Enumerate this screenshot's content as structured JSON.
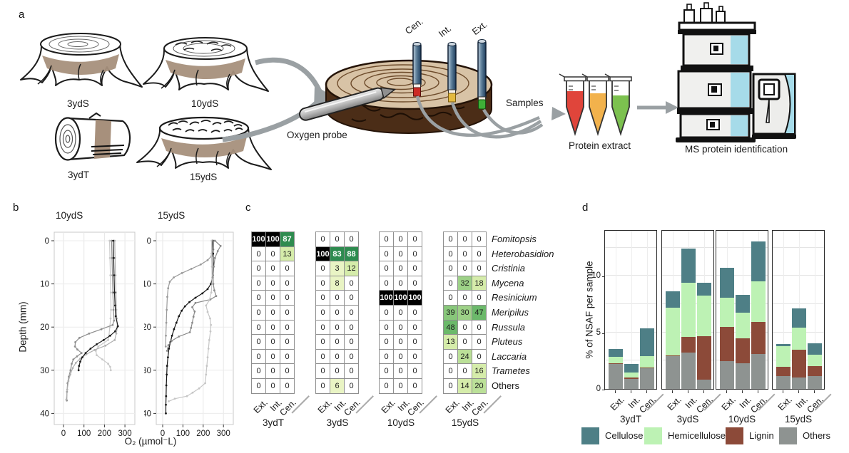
{
  "panel_labels": {
    "a": "a",
    "b": "b",
    "c": "c",
    "d": "d"
  },
  "panel_a": {
    "stump_labels": [
      "3ydS",
      "10ydS",
      "3ydT",
      "15ydS"
    ],
    "probe_labels": [
      "Cen.",
      "Int.",
      "Ext."
    ],
    "oxygen_probe_label": "Oxygen probe",
    "samples_label": "Samples",
    "protein_extract_label": "Protein extract",
    "ms_label": "MS protein identification",
    "colors": {
      "band": "#a7907c",
      "log_top": "#d8c3a6",
      "log_side": "#4b2d17",
      "probe_red": "#cc2b25",
      "probe_yellow": "#e3b93f",
      "probe_green": "#3fae37",
      "tube_red": "#e0453b",
      "tube_orange": "#f2b24c",
      "tube_green": "#7cc14f",
      "ms_blue": "#a6dbe9",
      "arrow_gray": "#9aa0a3"
    }
  },
  "chart_data": [
    {
      "id": "o2-profile-10ydS",
      "type": "line",
      "title": "10ydS",
      "xlabel": "O₂ (µmol⁻L)",
      "ylabel": "Depth (mm)",
      "xlim": [
        0,
        330
      ],
      "ylim": [
        0,
        42
      ],
      "y_inverted": true,
      "grid": true,
      "xticks": [
        0,
        100,
        200,
        300
      ],
      "yticks": [
        0,
        10,
        20,
        30,
        40
      ],
      "series": [
        {
          "name": "profile-light",
          "color": "#c9c9c9",
          "points": [
            [
              225,
              0
            ],
            [
              227,
              4
            ],
            [
              229,
              8
            ],
            [
              231,
              12
            ],
            [
              232,
              16
            ],
            [
              230,
              18
            ],
            [
              226,
              20
            ],
            [
              222,
              22
            ],
            [
              218,
              23
            ],
            [
              170,
              24.5
            ],
            [
              158,
              25.5
            ],
            [
              162,
              26.5
            ],
            [
              190,
              27.5
            ],
            [
              218,
              28.5
            ],
            [
              228,
              29.2
            ],
            [
              231,
              30
            ]
          ]
        },
        {
          "name": "profile-mid-deep",
          "color": "#8f8f8f",
          "points": [
            [
              235,
              0
            ],
            [
              237,
              4
            ],
            [
              239,
              8
            ],
            [
              241,
              12
            ],
            [
              244,
              16
            ],
            [
              247,
              18.5
            ],
            [
              240,
              19.5
            ],
            [
              185,
              20.5
            ],
            [
              125,
              21.5
            ],
            [
              78,
              22.5
            ],
            [
              58,
              23.5
            ],
            [
              56,
              24.5
            ],
            [
              68,
              25.2
            ],
            [
              88,
              26
            ],
            [
              66,
              26.8
            ],
            [
              48,
              27.5
            ],
            [
              40,
              28.5
            ],
            [
              34,
              30
            ],
            [
              26,
              31.5
            ],
            [
              20,
              33
            ],
            [
              17,
              35
            ],
            [
              16,
              37
            ]
          ]
        },
        {
          "name": "profile-mid",
          "color": "#b0b0b0",
          "points": [
            [
              250,
              0
            ],
            [
              252,
              4
            ],
            [
              254,
              8
            ],
            [
              256,
              12
            ],
            [
              258,
              16
            ],
            [
              260,
              18
            ],
            [
              263,
              20
            ],
            [
              258,
              21.5
            ],
            [
              250,
              23
            ],
            [
              205,
              24.3
            ],
            [
              152,
              25.3
            ],
            [
              112,
              26.3
            ],
            [
              82,
              27.3
            ],
            [
              60,
              28.3
            ],
            [
              45,
              29.5
            ],
            [
              33,
              31
            ],
            [
              24,
              32.5
            ],
            [
              18,
              34.5
            ],
            [
              14,
              36.8
            ]
          ]
        },
        {
          "name": "profile-dark",
          "color": "#1c1c1c",
          "points": [
            [
              243,
              0
            ],
            [
              245,
              4
            ],
            [
              247,
              8
            ],
            [
              249,
              12
            ],
            [
              252,
              15
            ],
            [
              255,
              17.5
            ],
            [
              266,
              19.8
            ],
            [
              252,
              21
            ],
            [
              228,
              22
            ],
            [
              196,
              23
            ],
            [
              162,
              24
            ],
            [
              132,
              25
            ],
            [
              108,
              26
            ],
            [
              92,
              27
            ],
            [
              82,
              28
            ],
            [
              76,
              29
            ],
            [
              74,
              30
            ]
          ]
        }
      ]
    },
    {
      "id": "o2-profile-15ydS",
      "type": "line",
      "title": "15ydS",
      "xlabel": "O₂ (µmol⁻L)",
      "ylabel": "Depth (mm)",
      "xlim": [
        0,
        330
      ],
      "ylim": [
        0,
        42
      ],
      "y_inverted": true,
      "grid": true,
      "xticks": [
        0,
        100,
        200,
        300
      ],
      "yticks": [
        0,
        10,
        20,
        30,
        40
      ],
      "series": [
        {
          "name": "profile-early-drop",
          "color": "#9a9a9a",
          "points": [
            [
              252,
              0
            ],
            [
              250,
              2
            ],
            [
              242,
              3.5
            ],
            [
              222,
              4.5
            ],
            [
              188,
              5.5
            ],
            [
              142,
              6.5
            ],
            [
              95,
              7.5
            ],
            [
              55,
              8.5
            ],
            [
              35,
              9.5
            ],
            [
              27,
              11
            ],
            [
              23,
              13
            ],
            [
              20,
              16
            ],
            [
              18,
              19
            ],
            [
              16,
              22
            ],
            [
              15,
              24.5
            ]
          ]
        },
        {
          "name": "profile-dark",
          "color": "#141414",
          "points": [
            [
              246,
              0
            ],
            [
              249,
              3
            ],
            [
              250,
              6
            ],
            [
              246,
              8.5
            ],
            [
              238,
              10
            ],
            [
              222,
              11.2
            ],
            [
              196,
              12.2
            ],
            [
              162,
              13.2
            ],
            [
              132,
              14.2
            ],
            [
              110,
              15.2
            ],
            [
              94,
              16.2
            ],
            [
              80,
              17.5
            ],
            [
              68,
              19
            ],
            [
              56,
              20.5
            ],
            [
              46,
              22
            ],
            [
              38,
              23.5
            ],
            [
              31,
              25
            ],
            [
              26,
              27
            ],
            [
              22,
              29
            ],
            [
              20,
              31
            ],
            [
              18,
              33.5
            ],
            [
              17,
              36
            ],
            [
              16,
              38
            ],
            [
              16,
              40
            ]
          ]
        },
        {
          "name": "profile-zigzag",
          "color": "#8a8a8a",
          "points": [
            [
              258,
              0
            ],
            [
              286,
              1.2
            ],
            [
              272,
              2.4
            ],
            [
              258,
              4
            ],
            [
              252,
              6
            ],
            [
              249,
              8
            ],
            [
              250,
              10
            ],
            [
              255,
              11.5
            ],
            [
              264,
              12.8
            ],
            [
              236,
              13.6
            ],
            [
              162,
              14.4
            ],
            [
              146,
              15.4
            ],
            [
              158,
              16.4
            ],
            [
              152,
              17.6
            ],
            [
              146,
              19
            ],
            [
              140,
              20.2
            ],
            [
              134,
              21.2
            ],
            [
              80,
              22.2
            ],
            [
              44,
              23.2
            ],
            [
              28,
              24.2
            ],
            [
              22,
              25.5
            ]
          ]
        },
        {
          "name": "profile-lightest",
          "color": "#c6c6c6",
          "points": [
            [
              242,
              0
            ],
            [
              241,
              3
            ],
            [
              243,
              6
            ],
            [
              244,
              9
            ],
            [
              240,
              12
            ],
            [
              230,
              13.8
            ],
            [
              214,
              15
            ],
            [
              222,
              16.5
            ],
            [
              234,
              18
            ],
            [
              238,
              19.5
            ],
            [
              236,
              21
            ],
            [
              230,
              23
            ],
            [
              226,
              25
            ],
            [
              222,
              27
            ],
            [
              218,
              29
            ],
            [
              214,
              31
            ],
            [
              210,
              33
            ],
            [
              180,
              34.2
            ],
            [
              148,
              35.2
            ],
            [
              120,
              36
            ],
            [
              60,
              36.6
            ],
            [
              30,
              37.2
            ]
          ]
        }
      ]
    },
    {
      "id": "genus-heatmap",
      "type": "heatmap",
      "groups": [
        "3ydT",
        "3ydS",
        "10ydS",
        "15ydS"
      ],
      "columns": [
        "Ext.",
        "Int.",
        "Cen."
      ],
      "rows": [
        {
          "name": "Fomitopsis",
          "italic": true
        },
        {
          "name": "Heterobasidion",
          "italic": true
        },
        {
          "name": "Cristinia",
          "italic": true
        },
        {
          "name": "Mycena",
          "italic": true
        },
        {
          "name": "Resinicium",
          "italic": true
        },
        {
          "name": "Meripilus",
          "italic": true
        },
        {
          "name": "Russula",
          "italic": true
        },
        {
          "name": "Pluteus",
          "italic": true
        },
        {
          "name": "Laccaria",
          "italic": true
        },
        {
          "name": "Trametes",
          "italic": true
        },
        {
          "name": "Others",
          "italic": false
        }
      ],
      "values": [
        [
          100,
          100,
          87,
          0,
          0,
          0,
          0,
          0,
          0,
          0,
          0,
          0
        ],
        [
          0,
          0,
          13,
          100,
          83,
          88,
          0,
          0,
          0,
          0,
          0,
          0
        ],
        [
          0,
          0,
          0,
          0,
          3,
          12,
          0,
          0,
          0,
          0,
          0,
          0
        ],
        [
          0,
          0,
          0,
          0,
          8,
          0,
          0,
          0,
          0,
          0,
          32,
          18
        ],
        [
          0,
          0,
          0,
          0,
          0,
          0,
          100,
          100,
          100,
          0,
          0,
          0
        ],
        [
          0,
          0,
          0,
          0,
          0,
          0,
          0,
          0,
          0,
          39,
          30,
          47
        ],
        [
          0,
          0,
          0,
          0,
          0,
          0,
          0,
          0,
          0,
          48,
          0,
          0
        ],
        [
          0,
          0,
          0,
          0,
          0,
          0,
          0,
          0,
          0,
          13,
          0,
          0
        ],
        [
          0,
          0,
          0,
          0,
          0,
          0,
          0,
          0,
          0,
          0,
          24,
          0
        ],
        [
          0,
          0,
          0,
          0,
          0,
          0,
          0,
          0,
          0,
          0,
          0,
          16
        ],
        [
          0,
          0,
          0,
          0,
          6,
          0,
          0,
          0,
          0,
          0,
          14,
          20
        ]
      ],
      "colorscale": [
        {
          "min": 100,
          "bg": "#000000",
          "text": "#ffffff"
        },
        {
          "min": 80,
          "bg": "#2e8b4f",
          "text": "#ffffff"
        },
        {
          "min": 45,
          "bg": "#6bb96a",
          "text": "#1c1c1c"
        },
        {
          "min": 36,
          "bg": "#88c77a",
          "text": "#1c1c1c"
        },
        {
          "min": 28,
          "bg": "#9dd187",
          "text": "#1c1c1c"
        },
        {
          "min": 20,
          "bg": "#bbe098",
          "text": "#1c1c1c"
        },
        {
          "min": 10,
          "bg": "#d5ecaa",
          "text": "#1c1c1c"
        },
        {
          "min": 1,
          "bg": "#e9f4c4",
          "text": "#1c1c1c"
        },
        {
          "min": 0,
          "bg": "#ffffff",
          "text": "#1c1c1c"
        }
      ]
    },
    {
      "id": "nsaf-stacked-bars",
      "type": "bar",
      "stacked": true,
      "ylabel": "% of NSAF per sample",
      "ylim": [
        0,
        14
      ],
      "yticks": [
        0,
        5,
        10
      ],
      "groups": [
        "3ydT",
        "3ydS",
        "10ydS",
        "15ydS"
      ],
      "categories": [
        "Ext.",
        "Int.",
        "Cen."
      ],
      "stack_order": [
        "Others",
        "Lignin",
        "Hemicellulose",
        "Cellulose"
      ],
      "legend": [
        {
          "label": "Cellulose",
          "color": "#4e7f86"
        },
        {
          "label": "Hemicellulose",
          "color": "#bdf2b4"
        },
        {
          "label": "Lignin",
          "color": "#8c4a39"
        },
        {
          "label": "Others",
          "color": "#8e9391"
        }
      ],
      "values": [
        {
          "group": "3ydT",
          "bars": [
            [
              2.2,
              0.06,
              0.6,
              0.65
            ],
            [
              0.9,
              0.12,
              0.4,
              0.8
            ],
            [
              1.8,
              0.08,
              1.0,
              2.45
            ]
          ]
        },
        {
          "group": "3ydS",
          "bars": [
            [
              2.9,
              0.06,
              4.2,
              1.5
            ],
            [
              3.2,
              1.4,
              4.8,
              3.0
            ],
            [
              0.8,
              3.85,
              3.6,
              1.15
            ]
          ]
        },
        {
          "group": "10ydS",
          "bars": [
            [
              2.45,
              3.05,
              2.6,
              2.6
            ],
            [
              2.25,
              2.2,
              2.3,
              1.6
            ],
            [
              3.1,
              2.85,
              3.6,
              3.5
            ]
          ]
        },
        {
          "group": "15ydS",
          "bars": [
            [
              1.15,
              0.8,
              1.85,
              0.15
            ],
            [
              1.0,
              2.45,
              1.95,
              1.7
            ],
            [
              1.15,
              0.85,
              1.05,
              1.0
            ]
          ]
        }
      ]
    }
  ]
}
